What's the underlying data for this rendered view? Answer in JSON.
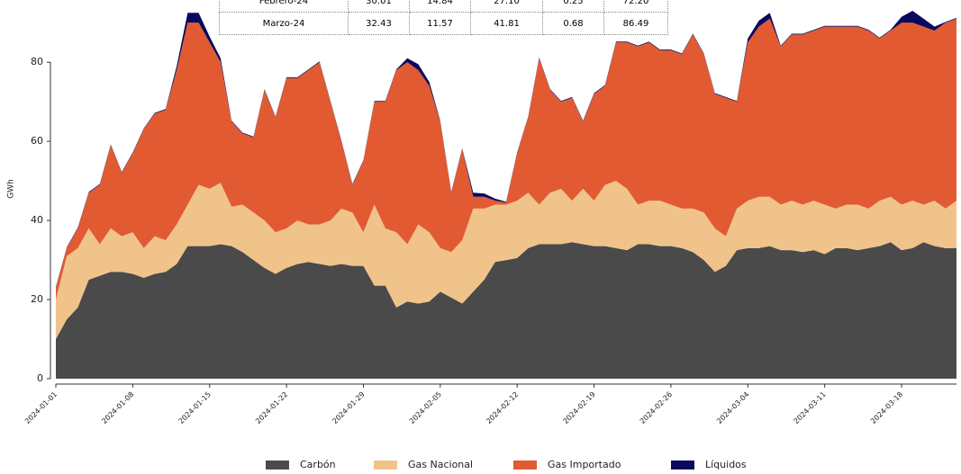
{
  "chart_data": {
    "type": "stacked_area",
    "ylabel": "GWh",
    "x": [
      "2024-01-01",
      "2024-01-02",
      "2024-01-03",
      "2024-01-04",
      "2024-01-05",
      "2024-01-06",
      "2024-01-07",
      "2024-01-08",
      "2024-01-09",
      "2024-01-10",
      "2024-01-11",
      "2024-01-12",
      "2024-01-13",
      "2024-01-14",
      "2024-01-15",
      "2024-01-16",
      "2024-01-17",
      "2024-01-18",
      "2024-01-19",
      "2024-01-20",
      "2024-01-21",
      "2024-01-22",
      "2024-01-23",
      "2024-01-24",
      "2024-01-25",
      "2024-01-26",
      "2024-01-27",
      "2024-01-28",
      "2024-01-29",
      "2024-01-30",
      "2024-01-31",
      "2024-02-01",
      "2024-02-02",
      "2024-02-03",
      "2024-02-04",
      "2024-02-05",
      "2024-02-06",
      "2024-02-07",
      "2024-02-08",
      "2024-02-09",
      "2024-02-10",
      "2024-02-11",
      "2024-02-12",
      "2024-02-13",
      "2024-02-14",
      "2024-02-15",
      "2024-02-16",
      "2024-02-17",
      "2024-02-18",
      "2024-02-19",
      "2024-02-20",
      "2024-02-21",
      "2024-02-22",
      "2024-02-23",
      "2024-02-24",
      "2024-02-25",
      "2024-02-26",
      "2024-02-27",
      "2024-02-28",
      "2024-02-29",
      "2024-03-01",
      "2024-03-02",
      "2024-03-03",
      "2024-03-04",
      "2024-03-05",
      "2024-03-06",
      "2024-03-07",
      "2024-03-08",
      "2024-03-09",
      "2024-03-10",
      "2024-03-11",
      "2024-03-12",
      "2024-03-13",
      "2024-03-14",
      "2024-03-15",
      "2024-03-16",
      "2024-03-17",
      "2024-03-18",
      "2024-03-19",
      "2024-03-20",
      "2024-03-21",
      "2024-03-22",
      "2024-03-23"
    ],
    "series": [
      {
        "name": "Carbón",
        "color": "#4a4a4a",
        "values": [
          10,
          15,
          18,
          25,
          26,
          27,
          27,
          26.5,
          25.5,
          26.5,
          27,
          29,
          33.5,
          33.5,
          33.5,
          34,
          33.5,
          32,
          30,
          28,
          26.5,
          28,
          29,
          29.5,
          29,
          28.5,
          29,
          28.5,
          28.5,
          23.5,
          23.5,
          18,
          19.5,
          19,
          19.5,
          22,
          20.5,
          19,
          22,
          25,
          29.5,
          30,
          30.5,
          33,
          34,
          34,
          34,
          34.5,
          34,
          33.5,
          33.5,
          33,
          32.5,
          34,
          34,
          33.5,
          33.5,
          33,
          32,
          30,
          27,
          28.5,
          32.5,
          33,
          33,
          33.5,
          32.5,
          32.5,
          32,
          32.5,
          31.5,
          33,
          33,
          32.5,
          33,
          33.5,
          34.5,
          32.5,
          33,
          34.5,
          33.5,
          33,
          33
        ]
      },
      {
        "name": "Gas Nacional",
        "color": "#f0c38a",
        "values": [
          10,
          16,
          15,
          13,
          8,
          11,
          9,
          10.5,
          7.5,
          9.5,
          8,
          10,
          10.5,
          15.5,
          14.5,
          15.5,
          10,
          12,
          12,
          12,
          10.5,
          10,
          11,
          9.5,
          10,
          11.5,
          14,
          13.5,
          8.5,
          20.5,
          14.5,
          19,
          14.5,
          20,
          17.5,
          11,
          11.5,
          16,
          21,
          18,
          14.5,
          14,
          14.5,
          14,
          10,
          13,
          14,
          10.5,
          14,
          11.5,
          15.5,
          17,
          15.5,
          10,
          11,
          11.5,
          10.5,
          10,
          11,
          12,
          11,
          7.5,
          10.5,
          12,
          13,
          12.5,
          11.5,
          12.5,
          12,
          12.5,
          12.5,
          10,
          11,
          11.5,
          10,
          11.5,
          11.5,
          11.5,
          12,
          9.5,
          11.5,
          10,
          12
        ]
      },
      {
        "name": "Gas Importado",
        "color": "#e25a32",
        "values": [
          3,
          2,
          5,
          9,
          15,
          21,
          16,
          20,
          30,
          31,
          33,
          39,
          46,
          41,
          37,
          30.5,
          21.5,
          18,
          19,
          33,
          29,
          38,
          36,
          39,
          41,
          30,
          17,
          7,
          18,
          26,
          32,
          41,
          46,
          39,
          37,
          32,
          15,
          23,
          3,
          3,
          1,
          0.5,
          12,
          19,
          37,
          26,
          22,
          26,
          17,
          27,
          25,
          35,
          37,
          40,
          40,
          38,
          39,
          39,
          44,
          40,
          34,
          35,
          27,
          40,
          43,
          45,
          40,
          42,
          43,
          43,
          45,
          46,
          45,
          45,
          45,
          41,
          42,
          46,
          45,
          45,
          43,
          47,
          46
        ]
      },
      {
        "name": "Líquidos",
        "color": "#0a0a5c",
        "values": [
          0.2,
          0.2,
          0.2,
          0.2,
          0.2,
          0.2,
          0.2,
          0.2,
          0.2,
          0.2,
          0.2,
          1,
          2.5,
          2.5,
          1.5,
          1,
          0.2,
          0.2,
          0.2,
          0.2,
          0.2,
          0.2,
          0.2,
          0.2,
          0.2,
          0.2,
          0.2,
          0.2,
          0.2,
          0.2,
          0.2,
          0.2,
          1,
          1.5,
          1,
          0.2,
          0.2,
          0.2,
          1,
          0.8,
          0.5,
          0.2,
          0.2,
          0.2,
          0.2,
          0.2,
          0.2,
          0.2,
          0.2,
          0.2,
          0.2,
          0.2,
          0.2,
          0.2,
          0.2,
          0.2,
          0.2,
          0.2,
          0.2,
          0.2,
          0.2,
          0.2,
          0.2,
          1,
          1.5,
          1.5,
          0.2,
          0.2,
          0.2,
          0.2,
          0.2,
          0.2,
          0.2,
          0.2,
          0.2,
          0.2,
          0.2,
          1.5,
          3,
          2,
          1,
          0.2,
          0.2
        ]
      }
    ],
    "ylim": [
      0,
      93
    ],
    "yticks": [
      0,
      20,
      40,
      60,
      80
    ],
    "xticks": [
      "2024-01-01",
      "2024-01-08",
      "2024-01-15",
      "2024-01-22",
      "2024-01-29",
      "2024-02-05",
      "2024-02-12",
      "2024-02-19",
      "2024-02-26",
      "2024-03-04",
      "2024-03-11",
      "2024-03-18"
    ],
    "legend": "bottom"
  },
  "table": {
    "rows": [
      [
        "Febrero-24",
        "30.01",
        "14.84",
        "27.10",
        "0.25",
        "72.20"
      ],
      [
        "Marzo-24",
        "32.43",
        "11.57",
        "41.81",
        "0.68",
        "86.49"
      ]
    ]
  }
}
